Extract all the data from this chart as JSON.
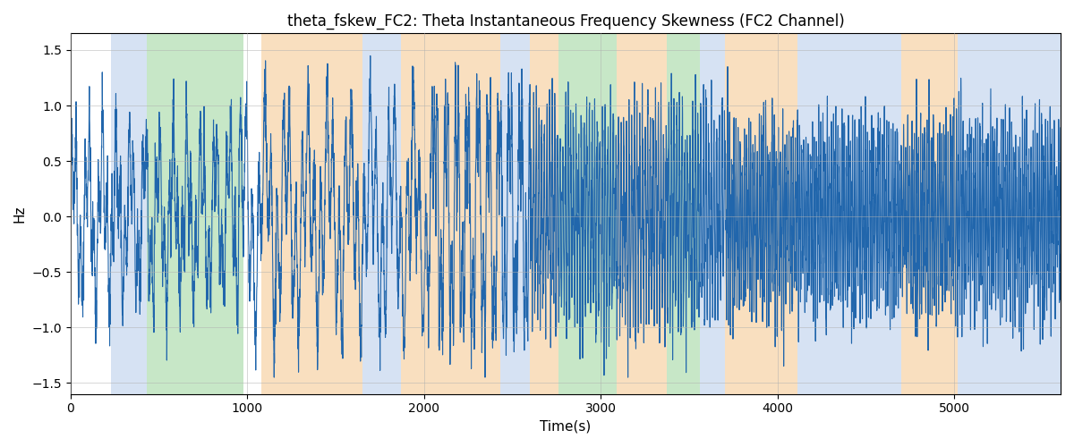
{
  "title": "theta_fskew_FC2: Theta Instantaneous Frequency Skewness (FC2 Channel)",
  "xlabel": "Time(s)",
  "ylabel": "Hz",
  "xlim": [
    0,
    5600
  ],
  "ylim": [
    -1.6,
    1.65
  ],
  "yticks": [
    -1.5,
    -1.0,
    -0.5,
    0.0,
    0.5,
    1.0,
    1.5
  ],
  "xticks": [
    0,
    1000,
    2000,
    3000,
    4000,
    5000
  ],
  "line_color": "#2166ac",
  "line_width": 0.8,
  "background_color": "#ffffff",
  "grid_color": "#b0b0b0",
  "bands": [
    {
      "xmin": 230,
      "xmax": 430,
      "color": "#aec6e8",
      "alpha": 0.5
    },
    {
      "xmin": 430,
      "xmax": 980,
      "color": "#90d090",
      "alpha": 0.5
    },
    {
      "xmin": 1080,
      "xmax": 1650,
      "color": "#f5c080",
      "alpha": 0.5
    },
    {
      "xmin": 1650,
      "xmax": 1870,
      "color": "#aec6e8",
      "alpha": 0.5
    },
    {
      "xmin": 1870,
      "xmax": 2430,
      "color": "#f5c080",
      "alpha": 0.5
    },
    {
      "xmin": 2430,
      "xmax": 2600,
      "color": "#aec6e8",
      "alpha": 0.5
    },
    {
      "xmin": 2600,
      "xmax": 2760,
      "color": "#f5c080",
      "alpha": 0.5
    },
    {
      "xmin": 2760,
      "xmax": 3090,
      "color": "#90d090",
      "alpha": 0.5
    },
    {
      "xmin": 3090,
      "xmax": 3370,
      "color": "#f5c080",
      "alpha": 0.5
    },
    {
      "xmin": 3370,
      "xmax": 3560,
      "color": "#90d090",
      "alpha": 0.5
    },
    {
      "xmin": 3560,
      "xmax": 3700,
      "color": "#aec6e8",
      "alpha": 0.5
    },
    {
      "xmin": 3700,
      "xmax": 4110,
      "color": "#f5c080",
      "alpha": 0.5
    },
    {
      "xmin": 4110,
      "xmax": 4700,
      "color": "#aec6e8",
      "alpha": 0.5
    },
    {
      "xmin": 4700,
      "xmax": 5020,
      "color": "#f5c080",
      "alpha": 0.5
    },
    {
      "xmin": 5020,
      "xmax": 5600,
      "color": "#aec6e8",
      "alpha": 0.5
    }
  ],
  "seed": 42,
  "n_points": 5600
}
